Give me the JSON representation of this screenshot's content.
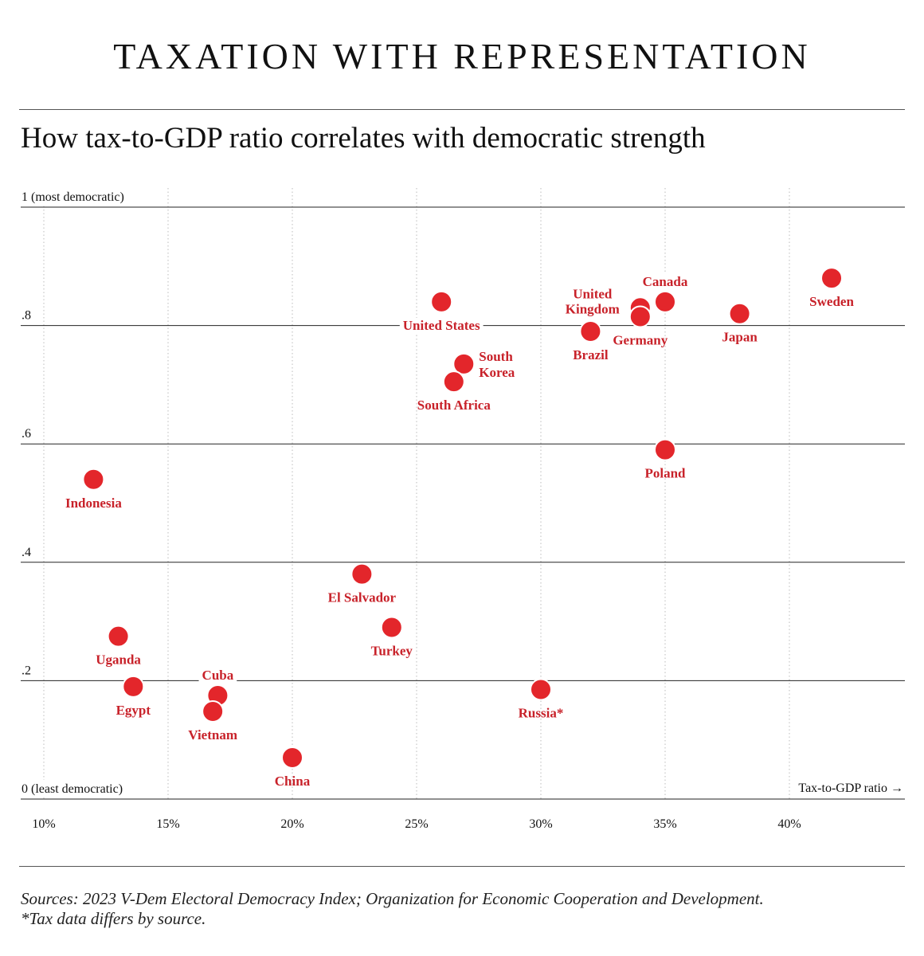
{
  "header": {
    "title": "TAXATION WITH REPRESENTATION",
    "subtitle": "How tax-to-GDP ratio correlates with democratic strength"
  },
  "footer": {
    "sources": "Sources: 2023 V-Dem Electoral Democracy Index; Organization for Economic Cooperation and Development.",
    "note": "*Tax data differs by source."
  },
  "colors": {
    "point": "#e3262b",
    "label": "#c8222a",
    "grid_major": "#222222",
    "grid_minor": "#bbbbbb"
  },
  "chart_data": {
    "type": "scatter",
    "title": "How tax-to-GDP ratio correlates with democratic strength",
    "xlabel": "Tax-to-GDP ratio →",
    "ylabel": "",
    "xlim": [
      9,
      44.5
    ],
    "ylim": [
      0,
      1
    ],
    "x_ticks": [
      10,
      15,
      20,
      25,
      30,
      35,
      40
    ],
    "x_tick_labels": [
      "10%",
      "15%",
      "20%",
      "25%",
      "30%",
      "35%",
      "40%"
    ],
    "y_ticks": [
      0,
      0.2,
      0.4,
      0.6,
      0.8,
      1
    ],
    "y_tick_labels": [
      "0  (least democratic)",
      ".2",
      ".4",
      ".6",
      ".8",
      "1  (most democratic)"
    ],
    "grid": true,
    "points": [
      {
        "label": "United States",
        "x": 26.0,
        "y": 0.84,
        "label_pos": "below-line"
      },
      {
        "label": "United Kingdom",
        "x": 34.0,
        "y": 0.83,
        "label_pos": "above-left"
      },
      {
        "label": "Canada",
        "x": 35.0,
        "y": 0.84,
        "label_pos": "above"
      },
      {
        "label": "Germany",
        "x": 34.0,
        "y": 0.815,
        "label_pos": "below-right"
      },
      {
        "label": "Sweden",
        "x": 41.7,
        "y": 0.88,
        "label_pos": "below"
      },
      {
        "label": "Japan",
        "x": 38.0,
        "y": 0.82,
        "label_pos": "below"
      },
      {
        "label": "Brazil",
        "x": 32.0,
        "y": 0.79,
        "label_pos": "below"
      },
      {
        "label": "South Korea",
        "x": 26.9,
        "y": 0.735,
        "label_pos": "right"
      },
      {
        "label": "South Africa",
        "x": 26.5,
        "y": 0.705,
        "label_pos": "below"
      },
      {
        "label": "Poland",
        "x": 35.0,
        "y": 0.59,
        "label_pos": "below"
      },
      {
        "label": "Indonesia",
        "x": 12.0,
        "y": 0.54,
        "label_pos": "below"
      },
      {
        "label": "El Salvador",
        "x": 22.8,
        "y": 0.38,
        "label_pos": "below"
      },
      {
        "label": "Turkey",
        "x": 24.0,
        "y": 0.29,
        "label_pos": "below"
      },
      {
        "label": "Uganda",
        "x": 13.0,
        "y": 0.275,
        "label_pos": "below"
      },
      {
        "label": "Egypt",
        "x": 13.6,
        "y": 0.19,
        "label_pos": "below"
      },
      {
        "label": "Cuba",
        "x": 17.0,
        "y": 0.175,
        "label_pos": "above"
      },
      {
        "label": "Vietnam",
        "x": 16.8,
        "y": 0.148,
        "label_pos": "below"
      },
      {
        "label": "Russia*",
        "x": 30.0,
        "y": 0.185,
        "label_pos": "below"
      },
      {
        "label": "China",
        "x": 20.0,
        "y": 0.07,
        "label_pos": "below"
      }
    ]
  }
}
